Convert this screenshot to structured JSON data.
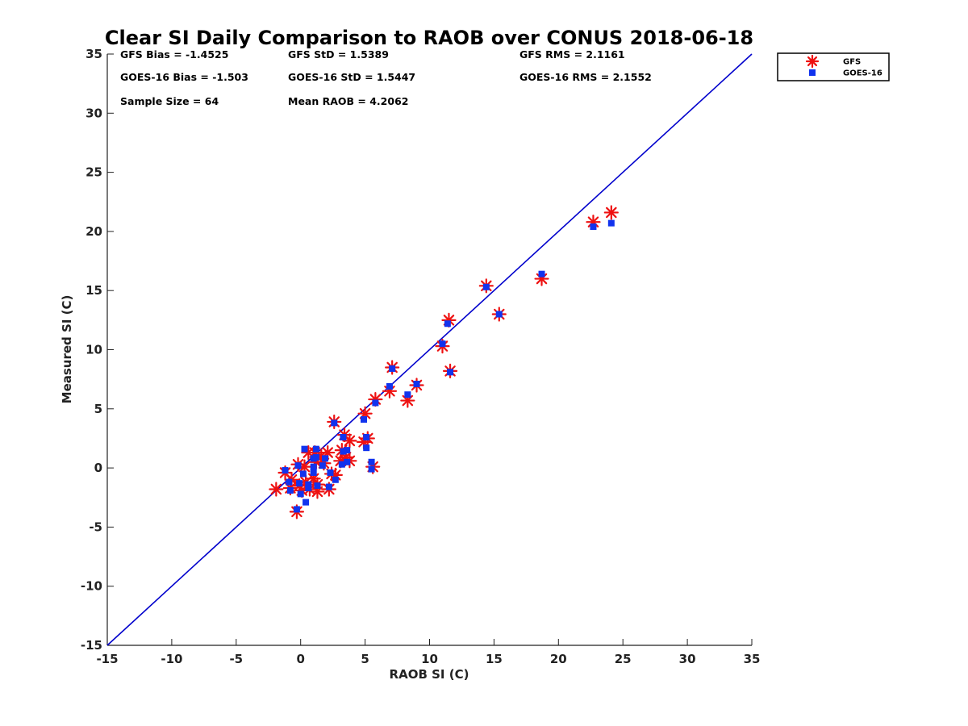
{
  "chart_data": {
    "type": "scatter",
    "title": "Clear SI Daily Comparison to RAOB over CONUS 2018-06-18",
    "xlabel": "RAOB SI (C)",
    "ylabel": "Measured SI (C)",
    "xlim": [
      -15,
      35
    ],
    "ylim": [
      -15,
      35
    ],
    "x_ticks": [
      "-15",
      "-10",
      "-5",
      "0",
      "5",
      "10",
      "15",
      "20",
      "25",
      "30",
      "35"
    ],
    "y_ticks": [
      "-15",
      "-10",
      "-5",
      "0",
      "5",
      "10",
      "15",
      "20",
      "25",
      "30",
      "35"
    ],
    "grid": false,
    "legend_position": "top-right outside",
    "reference_line": {
      "from": [
        -15,
        -15
      ],
      "to": [
        35,
        35
      ],
      "color": "#0000cc"
    },
    "stats": [
      {
        "text": "GFS Bias = -1.4525",
        "row": 0,
        "col": 0
      },
      {
        "text": "GFS StD = 1.5389",
        "row": 0,
        "col": 1
      },
      {
        "text": "GFS RMS = 2.1161",
        "row": 0,
        "col": 2
      },
      {
        "text": "GOES-16 Bias = -1.503",
        "row": 1,
        "col": 0
      },
      {
        "text": "GOES-16 StD = 1.5447",
        "row": 1,
        "col": 1
      },
      {
        "text": "GOES-16 RMS = 2.1552",
        "row": 1,
        "col": 2
      },
      {
        "text": "Sample Size = 64",
        "row": 2,
        "col": 0
      },
      {
        "text": "Mean RAOB = 4.2062",
        "row": 2,
        "col": 1
      }
    ],
    "series": [
      {
        "name": "GFS",
        "marker": "asterisk",
        "color": "#ee1111",
        "points": [
          [
            24.1,
            21.6
          ],
          [
            22.7,
            20.8
          ],
          [
            18.7,
            16.0
          ],
          [
            14.4,
            15.4
          ],
          [
            15.4,
            13.0
          ],
          [
            11.5,
            12.5
          ],
          [
            11.0,
            10.3
          ],
          [
            11.6,
            8.2
          ],
          [
            9.0,
            7.0
          ],
          [
            7.1,
            8.5
          ],
          [
            6.9,
            6.5
          ],
          [
            8.3,
            5.7
          ],
          [
            5.8,
            5.8
          ],
          [
            5.0,
            4.6
          ],
          [
            2.6,
            3.9
          ],
          [
            3.4,
            2.8
          ],
          [
            5.2,
            2.5
          ],
          [
            4.9,
            2.2
          ],
          [
            3.8,
            2.3
          ],
          [
            3.2,
            1.5
          ],
          [
            2.1,
            1.3
          ],
          [
            1.6,
            1.0
          ],
          [
            0.6,
            1.3
          ],
          [
            1.1,
            1.3
          ],
          [
            3.5,
            0.9
          ],
          [
            3.8,
            0.6
          ],
          [
            3.1,
            0.6
          ],
          [
            5.6,
            0.1
          ],
          [
            1.2,
            0.5
          ],
          [
            0.3,
            0.1
          ],
          [
            -0.2,
            0.3
          ],
          [
            1.8,
            0.4
          ],
          [
            2.7,
            -0.6
          ],
          [
            1.0,
            -0.9
          ],
          [
            1.3,
            -1.4
          ],
          [
            0.4,
            -1.2
          ],
          [
            -0.7,
            -1.0
          ],
          [
            -1.2,
            -0.4
          ],
          [
            -0.8,
            -1.7
          ],
          [
            0.7,
            -1.8
          ],
          [
            1.3,
            -2.0
          ],
          [
            0.1,
            -1.9
          ],
          [
            -1.9,
            -1.8
          ],
          [
            2.2,
            -1.8
          ],
          [
            -0.3,
            -3.7
          ],
          [
            2.4,
            -0.5
          ],
          [
            -0.1,
            -1.5
          ]
        ]
      },
      {
        "name": "GOES-16",
        "marker": "square",
        "color": "#1133ee",
        "points": [
          [
            24.1,
            20.7
          ],
          [
            22.7,
            20.4
          ],
          [
            18.7,
            16.4
          ],
          [
            14.4,
            15.3
          ],
          [
            15.4,
            13.0
          ],
          [
            11.4,
            12.2
          ],
          [
            11.0,
            10.5
          ],
          [
            11.6,
            8.1
          ],
          [
            9.0,
            7.1
          ],
          [
            7.1,
            8.4
          ],
          [
            6.9,
            6.9
          ],
          [
            8.3,
            6.2
          ],
          [
            5.8,
            5.5
          ],
          [
            4.9,
            4.1
          ],
          [
            2.6,
            3.8
          ],
          [
            3.3,
            2.6
          ],
          [
            5.1,
            2.6
          ],
          [
            5.1,
            1.7
          ],
          [
            3.6,
            1.5
          ],
          [
            3.3,
            1.4
          ],
          [
            0.3,
            1.6
          ],
          [
            1.2,
            1.6
          ],
          [
            1.9,
            0.8
          ],
          [
            1.0,
            0.8
          ],
          [
            3.6,
            0.5
          ],
          [
            3.2,
            0.3
          ],
          [
            5.5,
            0.5
          ],
          [
            5.5,
            -0.1
          ],
          [
            1.0,
            0.1
          ],
          [
            0.2,
            -0.5
          ],
          [
            -1.2,
            -0.2
          ],
          [
            -0.2,
            0.2
          ],
          [
            1.7,
            0.2
          ],
          [
            2.7,
            -1.0
          ],
          [
            1.0,
            -0.4
          ],
          [
            1.3,
            -1.5
          ],
          [
            0.6,
            -1.4
          ],
          [
            -0.9,
            -1.2
          ],
          [
            -0.8,
            -1.9
          ],
          [
            0.6,
            -1.7
          ],
          [
            0.4,
            -2.9
          ],
          [
            0.0,
            -2.2
          ],
          [
            -0.1,
            -1.3
          ],
          [
            2.2,
            -1.6
          ],
          [
            -0.3,
            -3.5
          ],
          [
            2.3,
            -0.4
          ],
          [
            1.2,
            0.9
          ]
        ]
      }
    ]
  }
}
